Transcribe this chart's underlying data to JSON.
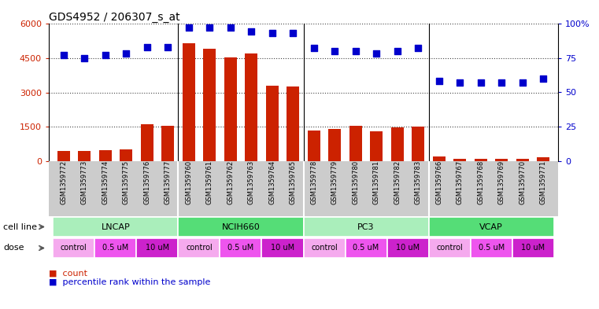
{
  "title": "GDS4952 / 206307_s_at",
  "samples": [
    "GSM1359772",
    "GSM1359773",
    "GSM1359774",
    "GSM1359775",
    "GSM1359776",
    "GSM1359777",
    "GSM1359760",
    "GSM1359761",
    "GSM1359762",
    "GSM1359763",
    "GSM1359764",
    "GSM1359765",
    "GSM1359778",
    "GSM1359779",
    "GSM1359780",
    "GSM1359781",
    "GSM1359782",
    "GSM1359783",
    "GSM1359766",
    "GSM1359767",
    "GSM1359768",
    "GSM1359769",
    "GSM1359770",
    "GSM1359771"
  ],
  "counts": [
    430,
    430,
    470,
    500,
    1620,
    1530,
    5150,
    4900,
    4530,
    4700,
    3280,
    3260,
    1350,
    1400,
    1550,
    1320,
    1470,
    1520,
    210,
    110,
    95,
    120,
    110,
    170
  ],
  "percentiles": [
    77,
    75,
    77,
    78,
    83,
    83,
    97,
    97,
    97,
    94,
    93,
    93,
    82,
    80,
    80,
    78,
    80,
    82,
    58,
    57,
    57,
    57,
    57,
    60
  ],
  "cell_lines": [
    {
      "name": "LNCAP",
      "start": 0,
      "end": 6,
      "color": "#AAEEBB"
    },
    {
      "name": "NCIH660",
      "start": 6,
      "end": 12,
      "color": "#55DD77"
    },
    {
      "name": "PC3",
      "start": 12,
      "end": 18,
      "color": "#AAEEBB"
    },
    {
      "name": "VCAP",
      "start": 18,
      "end": 24,
      "color": "#55DD77"
    }
  ],
  "dose_colors": {
    "control": "#F5AAEE",
    "0.5 uM": "#EE55EE",
    "10 uM": "#CC22CC"
  },
  "bar_color": "#CC2200",
  "dot_color": "#0000CC",
  "ylim_left": [
    0,
    6000
  ],
  "ylim_right": [
    0,
    100
  ],
  "yticks_left": [
    0,
    1500,
    3000,
    4500,
    6000
  ],
  "yticks_right": [
    0,
    25,
    50,
    75,
    100
  ],
  "grid_color": "#444444",
  "xtick_bg": "#CCCCCC",
  "cell_line_bg": "#DDDDDD",
  "dose_bg": "#DDDDDD"
}
